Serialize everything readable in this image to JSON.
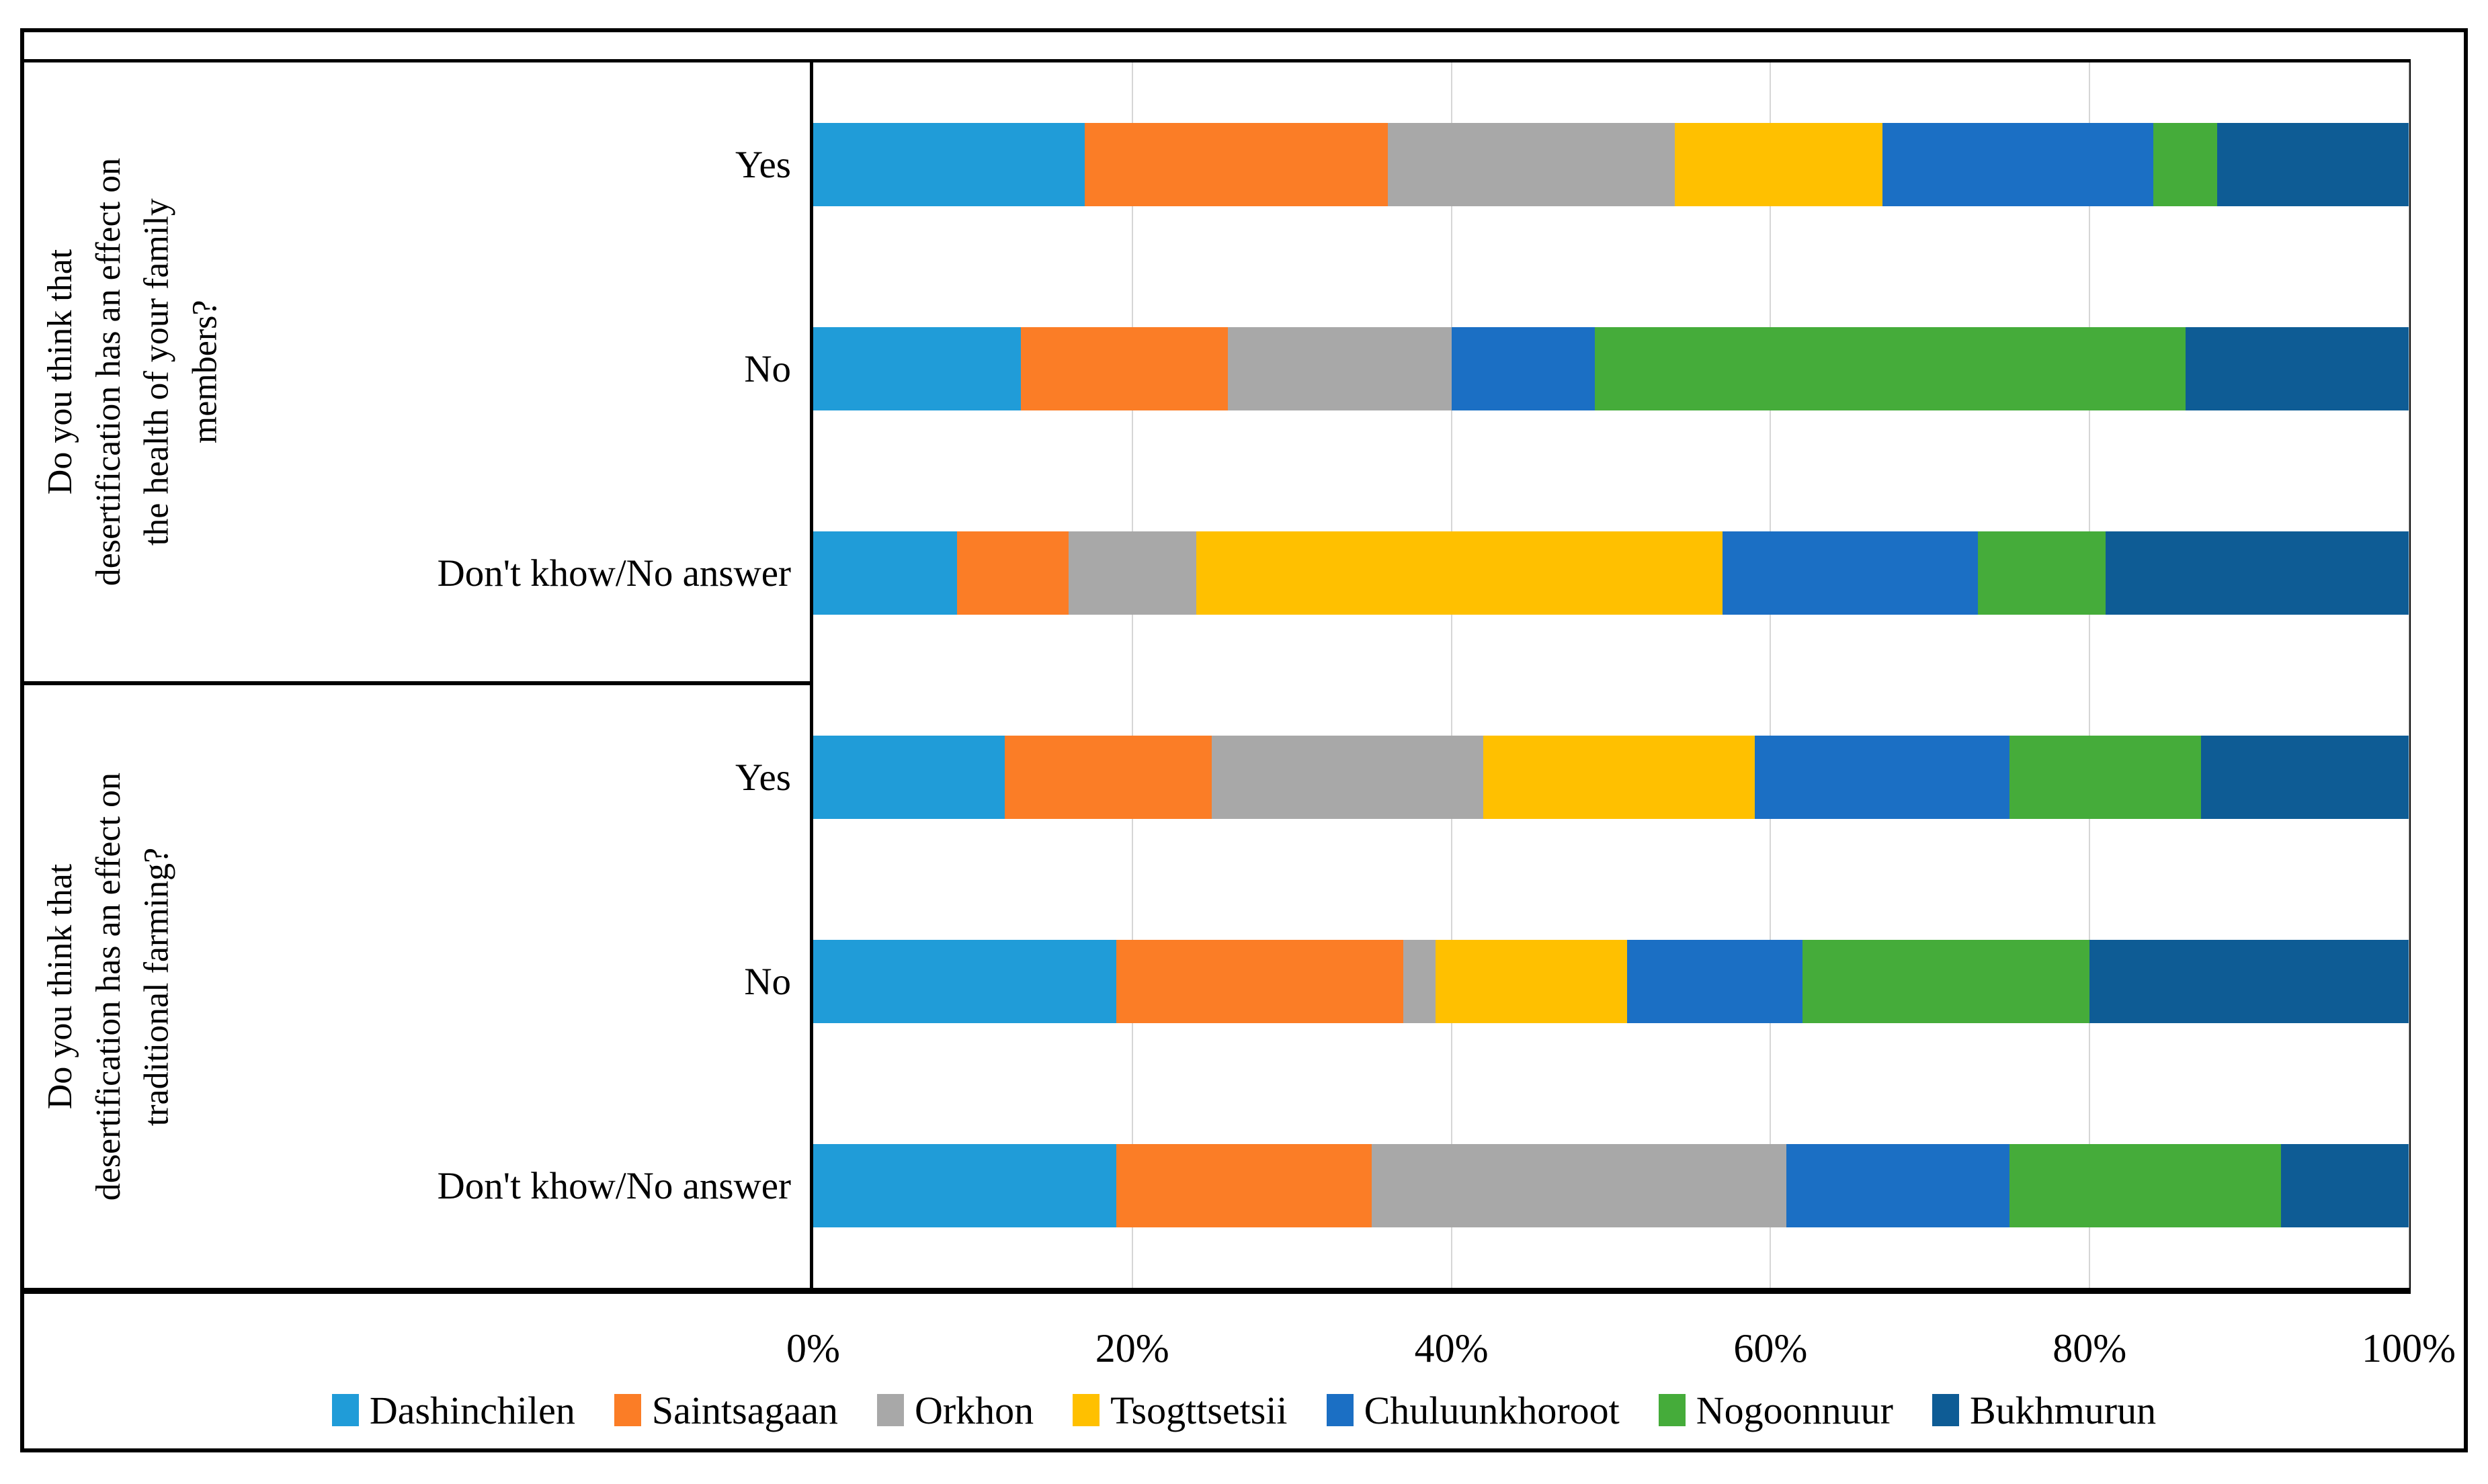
{
  "chart_data": {
    "type": "bar",
    "stacked": true,
    "orientation": "horizontal",
    "unit": "percent",
    "xlim": [
      0,
      100
    ],
    "grid": true,
    "legend_position": "bottom",
    "x_ticks": [
      "0%",
      "20%",
      "40%",
      "60%",
      "80%",
      "100%"
    ],
    "series": [
      {
        "name": "Dashinchilen",
        "color": "#209CD8"
      },
      {
        "name": "Saintsagaan",
        "color": "#FB7D26"
      },
      {
        "name": "Orkhon",
        "color": "#A8A8A8"
      },
      {
        "name": "Tsogttsetsii",
        "color": "#FFC000"
      },
      {
        "name": "Chuluunkhoroot",
        "color": "#1B6FC4"
      },
      {
        "name": "Nogoonnuur",
        "color": "#45AC3A"
      },
      {
        "name": "Bukhmurun",
        "color": "#0E5C95"
      }
    ],
    "groups": [
      {
        "question": "Do you think that desertification has an effect on the health of your family members?",
        "question_lines": "Do you think that\ndesertification has an effect on\nthe health of your family\nmembers?",
        "rows": [
          {
            "label": "Yes",
            "values": [
              17,
              19,
              18,
              13,
              17,
              4,
              12
            ]
          },
          {
            "label": "No",
            "values": [
              13,
              13,
              14,
              0,
              9,
              37,
              14
            ]
          },
          {
            "label": "Don't khow/No answer",
            "values": [
              9,
              7,
              8,
              33,
              16,
              8,
              19
            ]
          }
        ]
      },
      {
        "question": "Do you think that desertification has an effect on traditional farming?",
        "question_lines": "Do you think that\ndesertification has an effect on\ntraditional farming?",
        "rows": [
          {
            "label": "Yes",
            "values": [
              12,
              13,
              17,
              17,
              16,
              12,
              13
            ]
          },
          {
            "label": "No",
            "values": [
              19,
              18,
              2,
              12,
              11,
              18,
              20
            ]
          },
          {
            "label": "Don't khow/No answer",
            "values": [
              19,
              16,
              26,
              0,
              14,
              17,
              8
            ]
          }
        ]
      }
    ]
  }
}
